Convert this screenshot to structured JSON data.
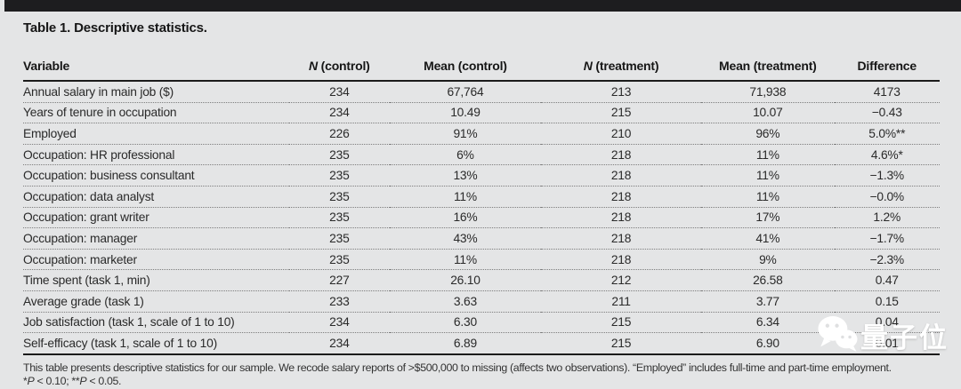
{
  "page": {
    "title": "Table 1. Descriptive statistics."
  },
  "colors": {
    "page_background": "#e4e5e6",
    "top_bar": "#1d1d1f",
    "rule": "#1b1b1b",
    "dotted_separator": "#7d7d7d",
    "watermark": "#ffffff"
  },
  "table": {
    "columns": [
      {
        "em": "",
        "rest": "Variable"
      },
      {
        "em": "N",
        "rest": " (control)"
      },
      {
        "em": "",
        "rest": "Mean (control)"
      },
      {
        "em": "N",
        "rest": " (treatment)"
      },
      {
        "em": "",
        "rest": "Mean (treatment)"
      },
      {
        "em": "",
        "rest": "Difference"
      }
    ],
    "rows": [
      [
        "Annual salary in main job ($)",
        "234",
        "67,764",
        "213",
        "71,938",
        "4173"
      ],
      [
        "Years of tenure in occupation",
        "234",
        "10.49",
        "215",
        "10.07",
        "−0.43"
      ],
      [
        "Employed",
        "226",
        "91%",
        "210",
        "96%",
        "5.0%**"
      ],
      [
        "Occupation: HR professional",
        "235",
        "6%",
        "218",
        "11%",
        "4.6%*"
      ],
      [
        "Occupation: business consultant",
        "235",
        "13%",
        "218",
        "11%",
        "−1.3%"
      ],
      [
        "Occupation: data analyst",
        "235",
        "11%",
        "218",
        "11%",
        "−0.0%"
      ],
      [
        "Occupation: grant writer",
        "235",
        "16%",
        "218",
        "17%",
        "1.2%"
      ],
      [
        "Occupation: manager",
        "235",
        "43%",
        "218",
        "41%",
        "−1.7%"
      ],
      [
        "Occupation: marketer",
        "235",
        "11%",
        "218",
        "9%",
        "−2.3%"
      ],
      [
        "Time spent (task 1, min)",
        "227",
        "26.10",
        "212",
        "26.58",
        "0.47"
      ],
      [
        "Average grade (task 1)",
        "233",
        "3.63",
        "211",
        "3.77",
        "0.15"
      ],
      [
        "Job satisfaction (task 1, scale of 1 to 10)",
        "234",
        "6.30",
        "215",
        "6.34",
        "0.04"
      ],
      [
        "Self-efficacy (task 1, scale of 1 to 10)",
        "234",
        "6.89",
        "215",
        "6.90",
        "0.01"
      ]
    ]
  },
  "footnotes": {
    "note": "This table presents descriptive statistics for our sample. We recode salary reports of >$500,000 to missing (affects two observations). “Employed” includes full-time and part-time employment.",
    "sig": [
      "*",
      "P",
      " < 0.10; **",
      "P",
      " < 0.05."
    ]
  },
  "watermark": {
    "icon": "wechat-icon",
    "label": "量子位"
  }
}
